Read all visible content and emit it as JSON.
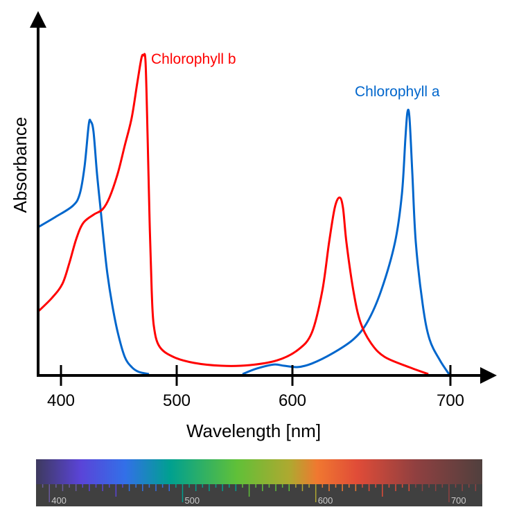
{
  "chart_data": {
    "type": "line",
    "title": "",
    "xlabel": "Wavelength [nm]",
    "ylabel": "Absorbance",
    "x_ticks": [
      400,
      500,
      600,
      700
    ],
    "xlim": [
      380,
      715
    ],
    "ylim": [
      0,
      1.05
    ],
    "grid": false,
    "legend": "inline labels next to peaks",
    "series": [
      {
        "name": "Chlorophyll a",
        "color": "#0066cc",
        "segments": [
          [
            [
              380.2,
              0.461
            ],
            [
              395.2,
              0.493
            ],
            [
              410.2,
              0.528
            ],
            [
              416.2,
              0.565
            ],
            [
              420.4,
              0.652
            ],
            [
              424,
              0.783
            ],
            [
              425.7,
              0.793
            ],
            [
              428.1,
              0.761
            ],
            [
              431.1,
              0.63
            ],
            [
              434.1,
              0.522
            ],
            [
              437.1,
              0.413
            ],
            [
              440.1,
              0.315
            ],
            [
              444.3,
              0.217
            ],
            [
              449.1,
              0.13
            ],
            [
              455.1,
              0.054
            ],
            [
              461.1,
              0.022
            ],
            [
              467.1,
              0.007
            ],
            [
              476,
              0
            ]
          ],
          [
            [
              556.9,
              0
            ],
            [
              568.9,
              0.017
            ],
            [
              583.8,
              0.03
            ],
            [
              592.8,
              0.026
            ],
            [
              603.5,
              0.022
            ],
            [
              612.3,
              0.033
            ],
            [
              625.4,
              0.065
            ],
            [
              638.6,
              0.109
            ],
            [
              647.4,
              0.163
            ],
            [
              656.1,
              0.261
            ],
            [
              664.9,
              0.413
            ],
            [
              669.3,
              0.565
            ],
            [
              671.5,
              0.739
            ],
            [
              672.8,
              0.822
            ],
            [
              674.1,
              0.804
            ],
            [
              675.9,
              0.63
            ],
            [
              678.1,
              0.413
            ],
            [
              682.5,
              0.217
            ],
            [
              686.8,
              0.109
            ],
            [
              693.4,
              0.043
            ],
            [
              699.1,
              0
            ]
          ]
        ]
      },
      {
        "name": "Chlorophyll b",
        "color": "#ff0000",
        "segments": [
          [
            [
              380.2,
              0.196
            ],
            [
              392.2,
              0.239
            ],
            [
              401.2,
              0.283
            ],
            [
              407.2,
              0.348
            ],
            [
              413.2,
              0.424
            ],
            [
              419.2,
              0.474
            ],
            [
              428.1,
              0.5
            ],
            [
              435.9,
              0.517
            ],
            [
              441.9,
              0.554
            ],
            [
              449.1,
              0.63
            ],
            [
              455.1,
              0.717
            ],
            [
              461.1,
              0.804
            ],
            [
              465.9,
              0.913
            ],
            [
              469.5,
              0.991
            ],
            [
              471.3,
              1.0
            ],
            [
              473.1,
              0.978
            ],
            [
              474.9,
              0.739
            ],
            [
              476.6,
              0.478
            ],
            [
              478.4,
              0.261
            ],
            [
              480.2,
              0.152
            ],
            [
              485,
              0.087
            ],
            [
              497,
              0.054
            ],
            [
              515,
              0.035
            ],
            [
              538.9,
              0.026
            ],
            [
              562.9,
              0.028
            ],
            [
              586.8,
              0.043
            ],
            [
              603.5,
              0.076
            ],
            [
              612.3,
              0.13
            ],
            [
              618.9,
              0.261
            ],
            [
              623.2,
              0.413
            ],
            [
              626.8,
              0.522
            ],
            [
              629.8,
              0.554
            ],
            [
              632,
              0.522
            ],
            [
              634.2,
              0.413
            ],
            [
              638.6,
              0.261
            ],
            [
              643,
              0.163
            ],
            [
              649.6,
              0.098
            ],
            [
              658.3,
              0.054
            ],
            [
              673.7,
              0.022
            ],
            [
              686,
              0
            ]
          ]
        ]
      }
    ]
  },
  "spectrum_bar": {
    "labels": [
      "400",
      "500",
      "600",
      "700"
    ],
    "range_nm": [
      390,
      725
    ]
  }
}
